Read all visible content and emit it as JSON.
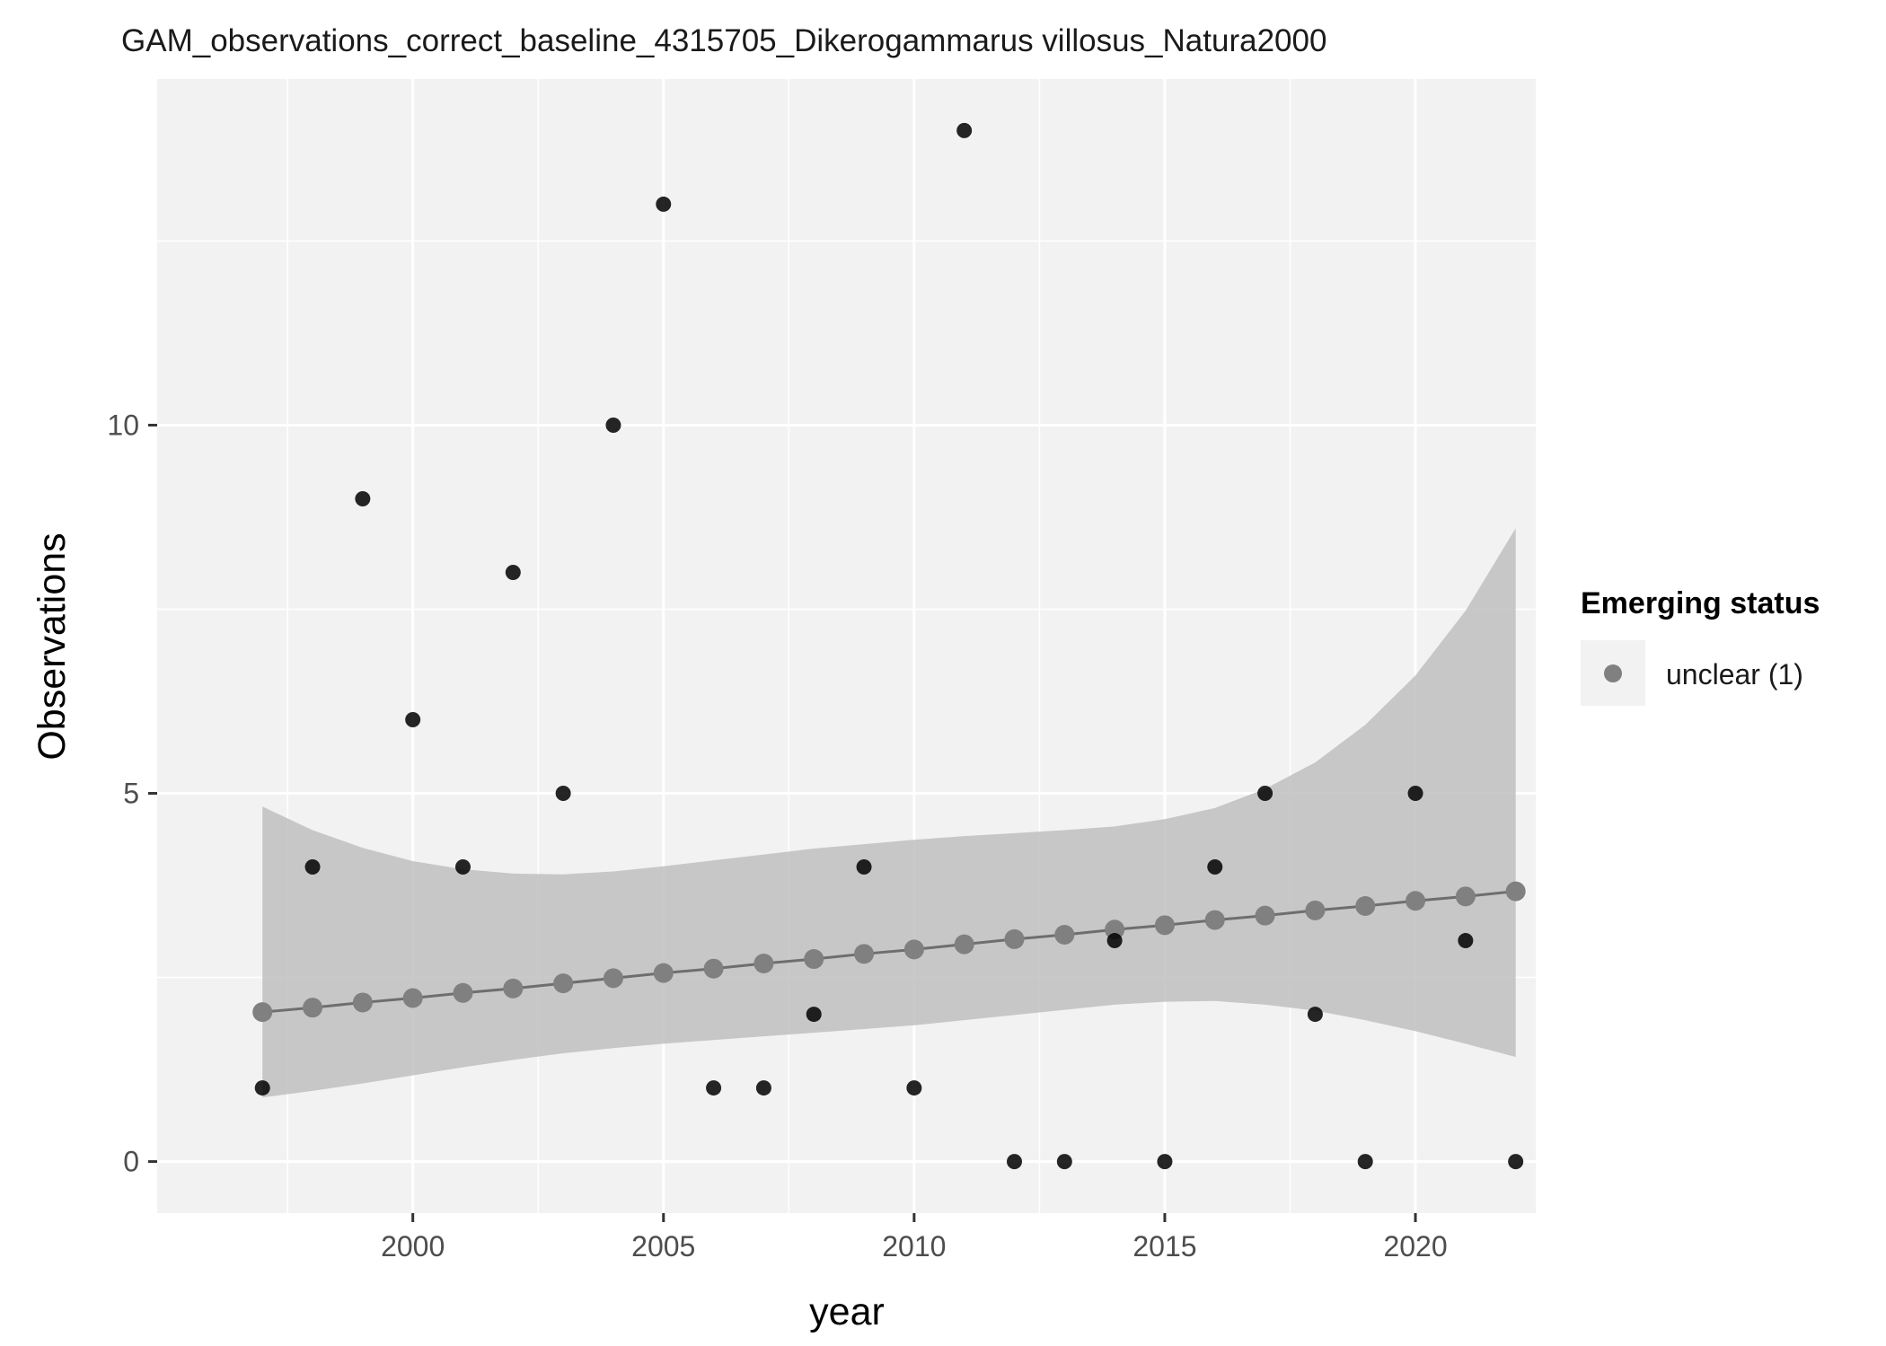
{
  "chart_data": {
    "type": "scatter",
    "title": "GAM_observations_correct_baseline_4315705_Dikerogammarus villosus_Natura2000",
    "xlabel": "year",
    "ylabel": "Observations",
    "xlim": [
      1994.9,
      2022.4
    ],
    "ylim": [
      -0.7,
      14.7
    ],
    "x_ticks": [
      2000,
      2005,
      2010,
      2015,
      2020
    ],
    "y_ticks": [
      0,
      5,
      10
    ],
    "grid": true,
    "legend": {
      "title": "Emerging status",
      "placement": "right",
      "entries": [
        {
          "label": "unclear (1)",
          "color": "#808080"
        }
      ]
    },
    "series": [
      {
        "kind": "observed",
        "color": "#000000",
        "points": [
          {
            "x": 1997,
            "y": 1
          },
          {
            "x": 1998,
            "y": 4
          },
          {
            "x": 1999,
            "y": 9
          },
          {
            "x": 2000,
            "y": 6
          },
          {
            "x": 2001,
            "y": 4
          },
          {
            "x": 2002,
            "y": 8
          },
          {
            "x": 2003,
            "y": 5
          },
          {
            "x": 2004,
            "y": 10
          },
          {
            "x": 2005,
            "y": 13
          },
          {
            "x": 2006,
            "y": 1
          },
          {
            "x": 2007,
            "y": 1
          },
          {
            "x": 2008,
            "y": 2
          },
          {
            "x": 2009,
            "y": 4
          },
          {
            "x": 2010,
            "y": 1
          },
          {
            "x": 2011,
            "y": 14
          },
          {
            "x": 2012,
            "y": 0
          },
          {
            "x": 2013,
            "y": 0
          },
          {
            "x": 2014,
            "y": 3
          },
          {
            "x": 2015,
            "y": 0
          },
          {
            "x": 2016,
            "y": 4
          },
          {
            "x": 2017,
            "y": 5
          },
          {
            "x": 2018,
            "y": 2
          },
          {
            "x": 2019,
            "y": 0
          },
          {
            "x": 2020,
            "y": 5
          },
          {
            "x": 2021,
            "y": 3
          },
          {
            "x": 2022,
            "y": 0
          }
        ]
      },
      {
        "kind": "fitted",
        "name": "unclear (1)",
        "color": "#808080",
        "points": [
          {
            "x": 1997,
            "y": 2.03,
            "lower": 0.87,
            "upper": 4.82
          },
          {
            "x": 1998,
            "y": 2.09,
            "lower": 0.96,
            "upper": 4.5
          },
          {
            "x": 1999,
            "y": 2.16,
            "lower": 1.06,
            "upper": 4.26
          },
          {
            "x": 2000,
            "y": 2.22,
            "lower": 1.17,
            "upper": 4.08
          },
          {
            "x": 2001,
            "y": 2.29,
            "lower": 1.28,
            "upper": 3.97
          },
          {
            "x": 2002,
            "y": 2.35,
            "lower": 1.38,
            "upper": 3.91
          },
          {
            "x": 2003,
            "y": 2.42,
            "lower": 1.47,
            "upper": 3.9
          },
          {
            "x": 2004,
            "y": 2.49,
            "lower": 1.54,
            "upper": 3.94
          },
          {
            "x": 2005,
            "y": 2.56,
            "lower": 1.6,
            "upper": 4.01
          },
          {
            "x": 2006,
            "y": 2.62,
            "lower": 1.65,
            "upper": 4.09
          },
          {
            "x": 2007,
            "y": 2.69,
            "lower": 1.7,
            "upper": 4.17
          },
          {
            "x": 2008,
            "y": 2.75,
            "lower": 1.75,
            "upper": 4.25
          },
          {
            "x": 2009,
            "y": 2.82,
            "lower": 1.8,
            "upper": 4.31
          },
          {
            "x": 2010,
            "y": 2.88,
            "lower": 1.85,
            "upper": 4.37
          },
          {
            "x": 2011,
            "y": 2.95,
            "lower": 1.92,
            "upper": 4.42
          },
          {
            "x": 2012,
            "y": 3.02,
            "lower": 1.99,
            "upper": 4.46
          },
          {
            "x": 2013,
            "y": 3.08,
            "lower": 2.06,
            "upper": 4.5
          },
          {
            "x": 2014,
            "y": 3.15,
            "lower": 2.13,
            "upper": 4.55
          },
          {
            "x": 2015,
            "y": 3.21,
            "lower": 2.17,
            "upper": 4.65
          },
          {
            "x": 2016,
            "y": 3.28,
            "lower": 2.18,
            "upper": 4.8
          },
          {
            "x": 2017,
            "y": 3.34,
            "lower": 2.13,
            "upper": 5.06
          },
          {
            "x": 2018,
            "y": 3.41,
            "lower": 2.05,
            "upper": 5.42
          },
          {
            "x": 2019,
            "y": 3.47,
            "lower": 1.92,
            "upper": 5.93
          },
          {
            "x": 2020,
            "y": 3.54,
            "lower": 1.77,
            "upper": 6.6
          },
          {
            "x": 2021,
            "y": 3.6,
            "lower": 1.6,
            "upper": 7.48
          },
          {
            "x": 2022,
            "y": 3.67,
            "lower": 1.42,
            "upper": 8.6
          }
        ]
      }
    ]
  }
}
